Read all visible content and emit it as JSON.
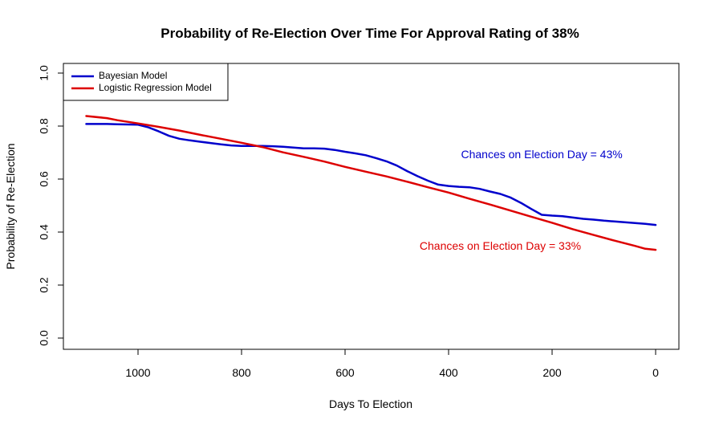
{
  "chart_data": {
    "type": "line",
    "title": "Probability of Re-Election Over Time For Approval Rating of 38%",
    "xlabel": "Days To Election",
    "ylabel": "Probability of Re-Election",
    "xlim": [
      1100,
      0
    ],
    "ylim": [
      0,
      1
    ],
    "x_reversed": true,
    "xticks": [
      1000,
      800,
      600,
      400,
      200,
      0
    ],
    "yticks": [
      0.0,
      0.2,
      0.4,
      0.6,
      0.8,
      1.0
    ],
    "xtick_labels": [
      "1000",
      "800",
      "600",
      "400",
      "200",
      "0"
    ],
    "ytick_labels": [
      "0.0",
      "0.2",
      "0.4",
      "0.6",
      "0.8",
      "1.0"
    ],
    "grid": false,
    "legend_position": "top-left",
    "series": [
      {
        "name": "Bayesian Model",
        "color": "#0000cc",
        "x": [
          1100,
          1060,
          1040,
          1000,
          980,
          960,
          940,
          920,
          900,
          880,
          860,
          840,
          820,
          800,
          780,
          760,
          740,
          720,
          700,
          680,
          660,
          640,
          620,
          600,
          580,
          560,
          540,
          520,
          500,
          480,
          460,
          440,
          420,
          400,
          380,
          360,
          340,
          320,
          300,
          280,
          260,
          240,
          220,
          200,
          180,
          160,
          140,
          120,
          100,
          80,
          60,
          40,
          20,
          0
        ],
        "y": [
          0.808,
          0.808,
          0.807,
          0.805,
          0.795,
          0.78,
          0.763,
          0.752,
          0.746,
          0.741,
          0.736,
          0.731,
          0.727,
          0.725,
          0.725,
          0.725,
          0.724,
          0.722,
          0.719,
          0.716,
          0.716,
          0.715,
          0.71,
          0.703,
          0.697,
          0.69,
          0.679,
          0.667,
          0.651,
          0.63,
          0.611,
          0.594,
          0.579,
          0.574,
          0.571,
          0.569,
          0.563,
          0.553,
          0.544,
          0.53,
          0.51,
          0.487,
          0.465,
          0.462,
          0.46,
          0.455,
          0.45,
          0.447,
          0.443,
          0.44,
          0.437,
          0.434,
          0.431,
          0.427
        ]
      },
      {
        "name": "Logistic Regression Model",
        "color": "#dd0000",
        "x": [
          1100,
          1060,
          1040,
          1000,
          960,
          920,
          880,
          840,
          800,
          760,
          720,
          680,
          640,
          600,
          560,
          520,
          480,
          440,
          400,
          360,
          320,
          280,
          240,
          200,
          160,
          120,
          80,
          40,
          20,
          0
        ],
        "y": [
          0.838,
          0.83,
          0.822,
          0.81,
          0.797,
          0.783,
          0.767,
          0.752,
          0.737,
          0.721,
          0.701,
          0.684,
          0.666,
          0.646,
          0.628,
          0.61,
          0.59,
          0.569,
          0.549,
          0.526,
          0.504,
          0.481,
          0.458,
          0.435,
          0.411,
          0.389,
          0.368,
          0.348,
          0.337,
          0.333
        ]
      }
    ],
    "annotations": [
      {
        "text": "Chances on Election Day = 43%",
        "x": 220,
        "y": 0.69,
        "color": "#0000cc"
      },
      {
        "text": "Chances on Election Day = 33%",
        "x": 300,
        "y": 0.345,
        "color": "#dd0000"
      }
    ]
  }
}
